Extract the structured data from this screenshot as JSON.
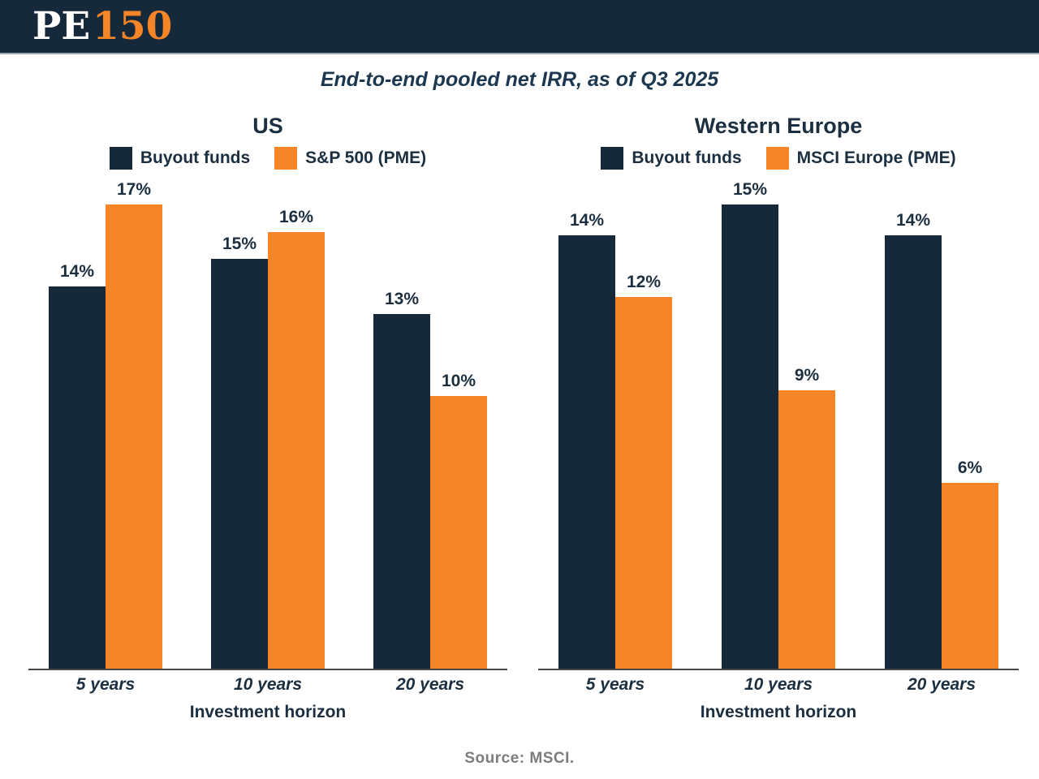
{
  "page": {
    "logo": {
      "pe": "PE",
      "num": "150"
    },
    "title": "End-to-end pooled net IRR, as of Q3 2025",
    "source": "Source: MSCI."
  },
  "colors": {
    "header_bg": "#16293A",
    "navy": "#16293A",
    "orange": "#F58526",
    "text_navy": "#1B2F40",
    "title_navy": "#1C3850",
    "axis_line": "#454545",
    "source_gray": "#7C7C7C",
    "header_divider": "#9FAAB0"
  },
  "chart_data": [
    {
      "type": "bar",
      "title": "US",
      "categories": [
        "5 years",
        "10 years",
        "20 years"
      ],
      "series": [
        {
          "name": "Buyout funds",
          "color": "#16293A",
          "values": [
            14,
            15,
            13
          ]
        },
        {
          "name": "S&P 500 (PME)",
          "color": "#F58526",
          "values": [
            17,
            16,
            10
          ]
        }
      ],
      "value_suffix": "%",
      "data_labels": [
        [
          "14%",
          "15%",
          "13%"
        ],
        [
          "17%",
          "16%",
          "10%"
        ]
      ],
      "xlabel": "Investment horizon",
      "ylabel": "",
      "ylim": [
        0,
        17
      ],
      "grid": false,
      "legend_position": "top"
    },
    {
      "type": "bar",
      "title": "Western Europe",
      "categories": [
        "5 years",
        "10 years",
        "20 years"
      ],
      "series": [
        {
          "name": "Buyout funds",
          "color": "#16293A",
          "values": [
            14,
            15,
            14
          ]
        },
        {
          "name": "MSCI Europe (PME)",
          "color": "#F58526",
          "values": [
            12,
            9,
            6
          ]
        }
      ],
      "value_suffix": "%",
      "data_labels": [
        [
          "14%",
          "15%",
          "14%"
        ],
        [
          "12%",
          "9%",
          "6%"
        ]
      ],
      "xlabel": "Investment horizon",
      "ylabel": "",
      "ylim": [
        0,
        15
      ],
      "grid": false,
      "legend_position": "top"
    }
  ]
}
